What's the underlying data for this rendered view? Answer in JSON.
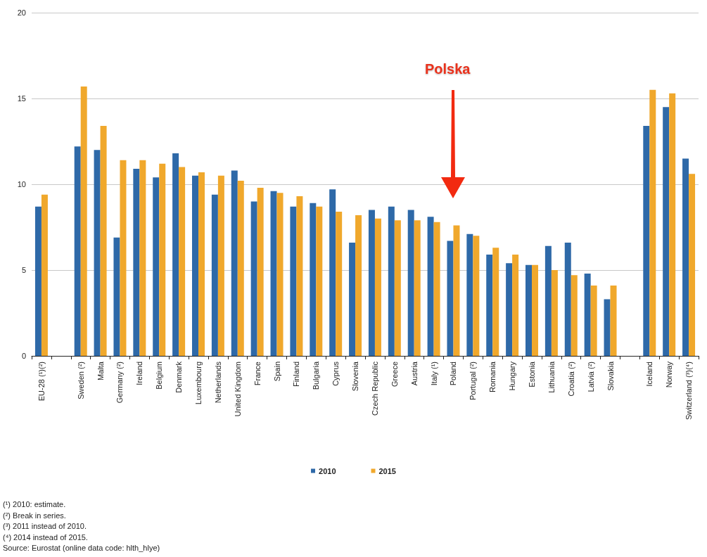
{
  "chart_data": {
    "type": "bar",
    "categories": [
      "EU-28 (¹)(²)",
      null,
      "Sweden (²)",
      "Malta",
      "Germany (²)",
      "Ireland",
      "Belgium",
      "Denmark",
      "Luxembourg",
      "Netherlands",
      "United Kingdom",
      "France",
      "Spain",
      "Finland",
      "Bulgaria",
      "Cyprus",
      "Slovenia",
      "Czech Republic",
      "Greece",
      "Austria",
      "Italy (¹)",
      "Poland",
      "Portugal (²)",
      "Romania",
      "Hungary",
      "Estonia",
      "Lithuania",
      "Croatia (²)",
      "Latvia (²)",
      "Slovakia",
      null,
      "Iceland",
      "Norway",
      "Switzerland (³)(⁴)"
    ],
    "series": [
      {
        "name": "2010",
        "color": "#2e69a8",
        "values": [
          8.7,
          null,
          12.2,
          12.0,
          6.9,
          10.9,
          10.4,
          11.8,
          10.5,
          9.4,
          10.8,
          9.0,
          9.6,
          8.7,
          8.9,
          9.7,
          6.6,
          8.5,
          8.7,
          8.5,
          8.1,
          6.7,
          7.1,
          5.9,
          5.4,
          5.3,
          6.4,
          6.6,
          4.8,
          3.3,
          null,
          13.4,
          14.5,
          11.5
        ]
      },
      {
        "name": "2015",
        "color": "#f0a82c",
        "values": [
          9.4,
          null,
          15.7,
          13.4,
          11.4,
          11.4,
          11.2,
          11.0,
          10.7,
          10.5,
          10.2,
          9.8,
          9.5,
          9.3,
          8.7,
          8.4,
          8.2,
          8.0,
          7.9,
          7.9,
          7.8,
          7.6,
          7.0,
          6.3,
          5.9,
          5.3,
          5.0,
          4.7,
          4.1,
          4.1,
          null,
          15.5,
          15.3,
          10.6
        ]
      }
    ],
    "ylim": [
      0,
      20
    ],
    "yticks": [
      0,
      5,
      10,
      15,
      20
    ],
    "grid": "y",
    "legend": "bottom",
    "annotations": [
      "Polska",
      "(¹) 2010: estimate.",
      "(²) Break in series.",
      "(³) 2011 instead of 2010.",
      "(⁴) 2014 instead of 2015.",
      "Source: Eurostat (online data code: hlth_hlye)"
    ]
  }
}
